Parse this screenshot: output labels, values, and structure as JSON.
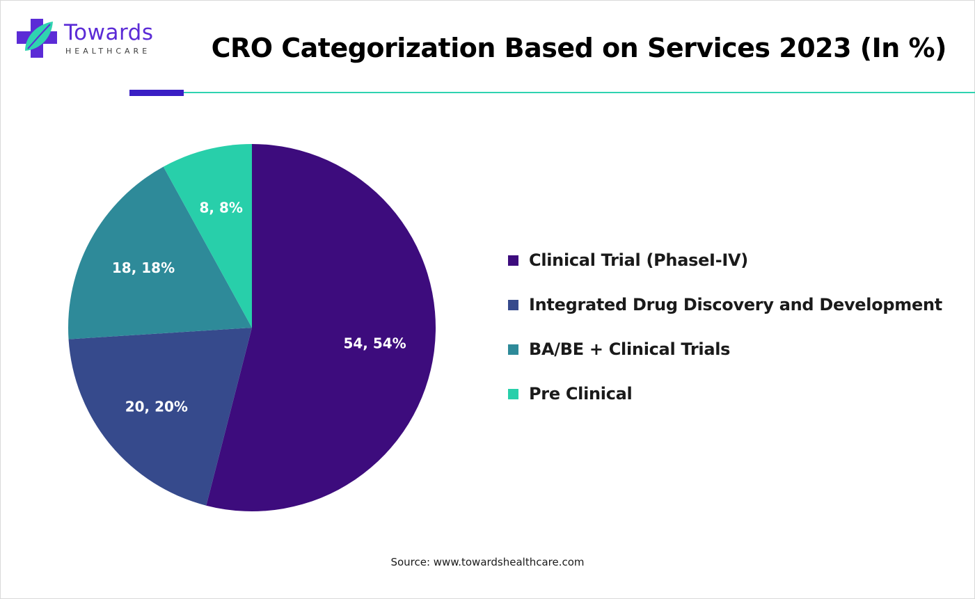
{
  "brand": {
    "name": "Towards",
    "tagline": "HEALTHCARE",
    "icon": "medical-cross-leaf-icon",
    "colors": {
      "cross": "#5b2bd6",
      "leaf": "#2fd3b0"
    }
  },
  "header": {
    "title": "CRO Categorization Based on Services 2023 (In %)",
    "accent_color": "#3a1fc4",
    "rule_color": "#2fd3b0"
  },
  "chart_data": {
    "type": "pie",
    "title": "CRO Categorization Based on Services 2023 (In %)",
    "categories": [
      "Clinical Trial (PhaseI-IV)",
      "Integrated Drug Discovery and Development",
      "BA/BE + Clinical Trials",
      "Pre Clinical"
    ],
    "values": [
      54,
      20,
      18,
      8
    ],
    "data_labels": [
      "54, 54%",
      "20, 20%",
      "18, 18%",
      "8, 8%"
    ],
    "colors": [
      "#3d0c7d",
      "#364a8c",
      "#2e8a99",
      "#28cfaa"
    ],
    "legend_position": "right",
    "start_angle_deg": 0,
    "direction": "clockwise"
  },
  "footer": {
    "source": "Source: www.towardshealthcare.com"
  }
}
